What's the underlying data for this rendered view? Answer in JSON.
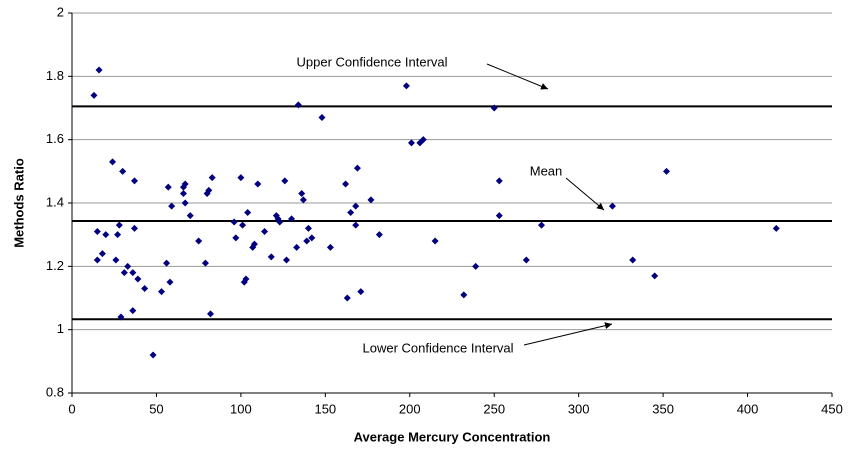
{
  "chart_data": {
    "type": "scatter",
    "x_label": "Average Mercury Concentration",
    "y_label": "Methods Ratio",
    "xlim": [
      0,
      450
    ],
    "xticks": [
      0,
      50,
      100,
      150,
      200,
      250,
      300,
      350,
      400,
      450
    ],
    "ylim": [
      0.8,
      2
    ],
    "yticks": [
      0.8,
      1,
      1.2,
      1.4,
      1.6,
      1.8,
      2
    ],
    "grid": true,
    "series": [
      {
        "color": "#000080",
        "x": [
          13,
          16,
          15,
          15,
          18,
          20,
          24,
          26,
          27,
          28,
          29,
          30,
          31,
          33,
          36,
          37,
          37,
          36,
          39,
          43,
          48,
          53,
          56,
          57,
          58,
          59,
          66,
          66,
          67,
          67,
          70,
          75,
          79,
          80,
          81,
          82,
          83,
          96,
          97,
          100,
          101,
          102,
          103,
          104,
          107,
          108,
          110,
          114,
          118,
          121,
          122,
          123,
          126,
          127,
          130,
          133,
          134,
          136,
          137,
          139,
          140,
          142,
          148,
          153,
          162,
          163,
          165,
          168,
          168,
          169,
          171,
          177,
          182,
          198,
          201,
          206,
          208,
          215,
          232,
          239,
          250,
          253,
          253,
          269,
          278,
          320,
          332,
          345,
          352,
          417
        ],
        "values": [
          1.74,
          1.82,
          1.31,
          1.22,
          1.24,
          1.3,
          1.53,
          1.22,
          1.3,
          1.33,
          1.04,
          1.5,
          1.18,
          1.2,
          1.18,
          1.47,
          1.32,
          1.06,
          1.16,
          1.13,
          0.92,
          1.12,
          1.21,
          1.45,
          1.15,
          1.39,
          1.45,
          1.43,
          1.46,
          1.4,
          1.36,
          1.28,
          1.21,
          1.43,
          1.44,
          1.05,
          1.48,
          1.34,
          1.29,
          1.48,
          1.33,
          1.15,
          1.16,
          1.37,
          1.26,
          1.27,
          1.46,
          1.31,
          1.23,
          1.36,
          1.35,
          1.34,
          1.47,
          1.22,
          1.35,
          1.26,
          1.71,
          1.43,
          1.41,
          1.28,
          1.32,
          1.29,
          1.67,
          1.26,
          1.46,
          1.1,
          1.37,
          1.39,
          1.33,
          1.51,
          1.12,
          1.41,
          1.3,
          1.77,
          1.59,
          1.59,
          1.6,
          1.28,
          1.11,
          1.2,
          1.7,
          1.47,
          1.36,
          1.22,
          1.33,
          1.39,
          1.22,
          1.17,
          1.5,
          1.32
        ]
      }
    ],
    "reference_lines": [
      {
        "name": "Upper Confidence Interval",
        "value": 1.705
      },
      {
        "name": "Mean",
        "value": 1.343
      },
      {
        "name": "Lower Confidence Interval",
        "value": 1.033
      }
    ]
  }
}
